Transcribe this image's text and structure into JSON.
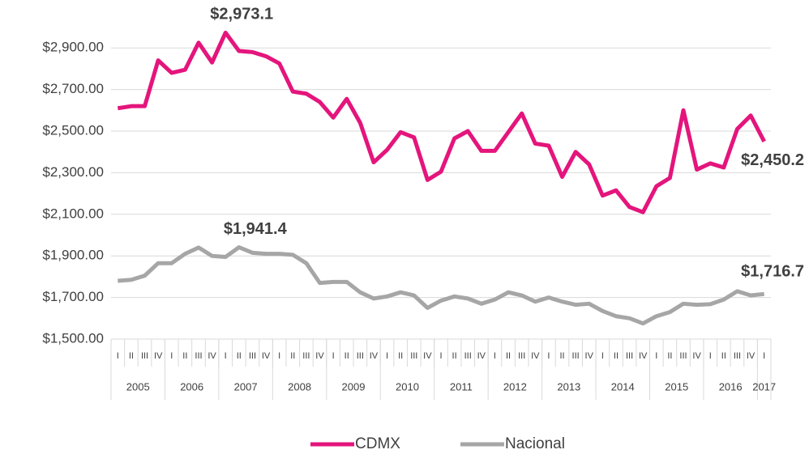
{
  "chart_data": {
    "type": "line",
    "categories": [
      "I",
      "II",
      "III",
      "IV",
      "I",
      "II",
      "III",
      "IV",
      "I",
      "II",
      "III",
      "IV",
      "I",
      "II",
      "III",
      "IV",
      "I",
      "II",
      "III",
      "IV",
      "I",
      "II",
      "III",
      "IV",
      "I",
      "II",
      "III",
      "IV",
      "I",
      "II",
      "III",
      "IV",
      "I",
      "II",
      "III",
      "IV",
      "I",
      "II",
      "III",
      "IV",
      "I",
      "II",
      "III",
      "IV",
      "I",
      "II",
      "III",
      "IV",
      "I"
    ],
    "category_groups": [
      "2005",
      "2006",
      "2007",
      "2008",
      "2009",
      "2010",
      "2011",
      "2012",
      "2013",
      "2014",
      "2015",
      "2016",
      "2017"
    ],
    "series": [
      {
        "name": "CDMX",
        "color": "#e4157c",
        "values": [
          2610,
          2620,
          2620,
          2840,
          2780,
          2795,
          2925,
          2830,
          2973.1,
          2885,
          2880,
          2860,
          2825,
          2690,
          2680,
          2640,
          2565,
          2655,
          2540,
          2350,
          2410,
          2495,
          2470,
          2265,
          2305,
          2465,
          2500,
          2405,
          2405,
          2495,
          2585,
          2440,
          2430,
          2280,
          2400,
          2340,
          2190,
          2215,
          2135,
          2110,
          2235,
          2275,
          2600,
          2315,
          2345,
          2325,
          2510,
          2575,
          2450.2
        ],
        "value_labels": [
          null,
          null,
          null,
          null,
          null,
          null,
          null,
          null,
          "$2,973.1",
          null,
          null,
          null,
          null,
          null,
          null,
          null,
          null,
          null,
          null,
          null,
          null,
          null,
          null,
          null,
          null,
          null,
          null,
          null,
          null,
          null,
          null,
          null,
          null,
          null,
          null,
          null,
          null,
          null,
          null,
          null,
          null,
          null,
          null,
          null,
          null,
          null,
          null,
          null,
          "$2,450.2"
        ]
      },
      {
        "name": "Nacional",
        "color": "#a6a6a6",
        "values": [
          1780,
          1785,
          1805,
          1865,
          1865,
          1910,
          1940,
          1900,
          1895,
          1941.4,
          1915,
          1910,
          1910,
          1905,
          1865,
          1770,
          1775,
          1775,
          1725,
          1695,
          1705,
          1725,
          1710,
          1650,
          1685,
          1705,
          1695,
          1670,
          1690,
          1725,
          1710,
          1680,
          1700,
          1680,
          1665,
          1670,
          1635,
          1610,
          1600,
          1575,
          1610,
          1630,
          1670,
          1665,
          1668,
          1690,
          1730,
          1710,
          1716.7
        ],
        "value_labels": [
          null,
          null,
          null,
          null,
          null,
          null,
          null,
          null,
          null,
          "$1,941.4",
          null,
          null,
          null,
          null,
          null,
          null,
          null,
          null,
          null,
          null,
          null,
          null,
          null,
          null,
          null,
          null,
          null,
          null,
          null,
          null,
          null,
          null,
          null,
          null,
          null,
          null,
          null,
          null,
          null,
          null,
          null,
          null,
          null,
          null,
          null,
          null,
          null,
          null,
          "$1,716.7"
        ]
      }
    ],
    "ylim": [
      1500,
      3000
    ],
    "yticks": [
      {
        "value": 1500,
        "label": "$1,500.00"
      },
      {
        "value": 1700,
        "label": "$1,700.00"
      },
      {
        "value": 1900,
        "label": "$1,900.00"
      },
      {
        "value": 2100,
        "label": "$2,100.00"
      },
      {
        "value": 2300,
        "label": "$2,300.00"
      },
      {
        "value": 2500,
        "label": "$2,500.00"
      },
      {
        "value": 2700,
        "label": "$2,700.00"
      },
      {
        "value": 2900,
        "label": "$2,900.00"
      }
    ],
    "grid": true,
    "legend": "bottom"
  }
}
